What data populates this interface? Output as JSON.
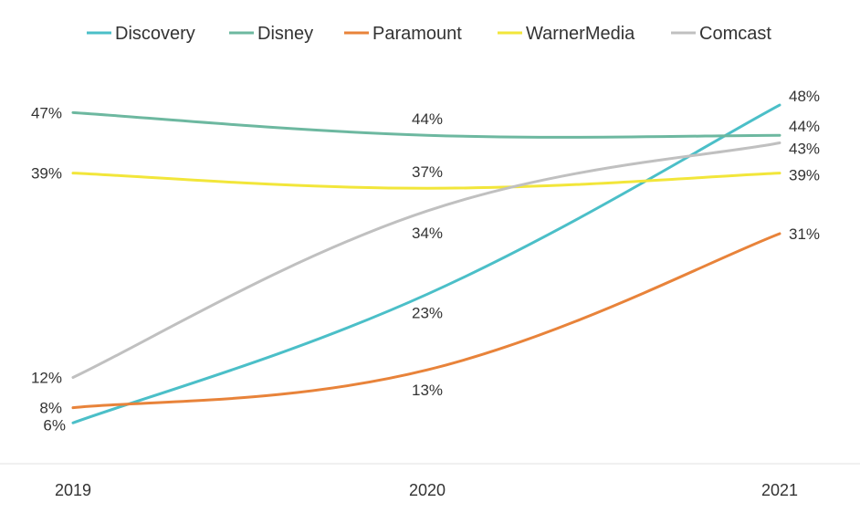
{
  "chart_data": {
    "type": "line",
    "title": "",
    "xlabel": "",
    "ylabel": "",
    "categories": [
      "2019",
      "2020",
      "2021"
    ],
    "ylim": [
      0,
      55
    ],
    "grid": false,
    "legend_position": "top",
    "series": [
      {
        "name": "Discovery",
        "color": "#4BBFC8",
        "values": [
          6,
          23,
          48
        ],
        "labels": [
          "6%",
          "23%",
          "48%"
        ]
      },
      {
        "name": "Disney",
        "color": "#6DB8A0",
        "values": [
          47,
          44,
          44
        ],
        "labels": [
          "47%",
          "44%",
          "44%"
        ]
      },
      {
        "name": "Paramount",
        "color": "#E8833A",
        "values": [
          8,
          13,
          31
        ],
        "labels": [
          "8%",
          "13%",
          "31%"
        ]
      },
      {
        "name": "WarnerMedia",
        "color": "#F2E63A",
        "values": [
          39,
          37,
          39
        ],
        "labels": [
          "39%",
          "37%",
          "39%"
        ]
      },
      {
        "name": "Comcast",
        "color": "#C0C0C0",
        "values": [
          12,
          34,
          43
        ],
        "labels": [
          "12%",
          "34%",
          "43%"
        ]
      }
    ]
  }
}
